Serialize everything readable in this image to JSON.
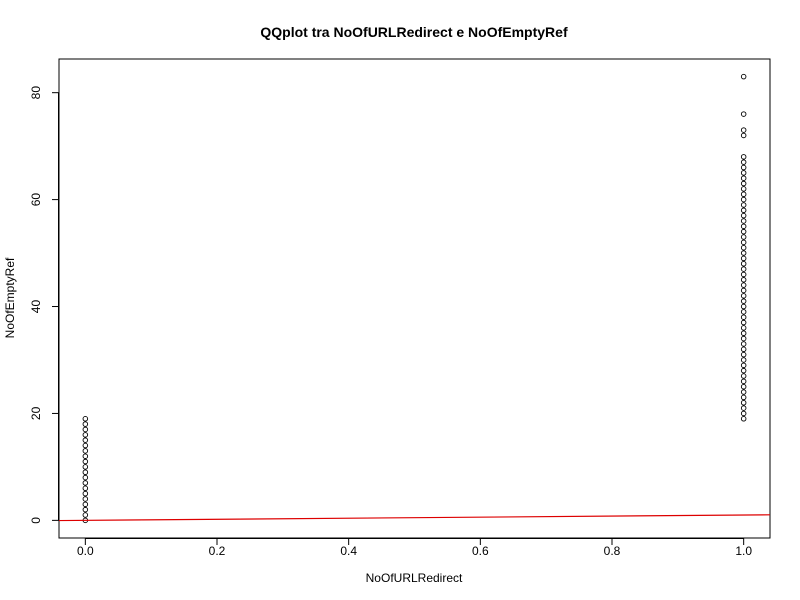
{
  "chart_data": {
    "type": "scatter",
    "title": "QQplot tra NoOfURLRedirect e NoOfEmptyRef",
    "xlabel": "NoOfURLRedirect",
    "ylabel": "NoOfEmptyRef",
    "xlim": [
      -0.04,
      1.04
    ],
    "ylim": [
      -3.3,
      86.3
    ],
    "x_ticks": [
      0.0,
      0.2,
      0.4,
      0.6,
      0.8,
      1.0
    ],
    "x_tick_labels": [
      "0.0",
      "0.2",
      "0.4",
      "0.6",
      "0.8",
      "1.0"
    ],
    "y_ticks": [
      0,
      20,
      40,
      60,
      80
    ],
    "y_tick_labels": [
      "0",
      "20",
      "40",
      "60",
      "80"
    ],
    "grid": false,
    "series": [
      {
        "values_x": 0,
        "values_y_range": [
          0,
          19
        ]
      },
      {
        "values_x": 1,
        "values_y_range": [
          19,
          64
        ],
        "extra_y": [
          65,
          66,
          67,
          68,
          72,
          73,
          76,
          83
        ]
      }
    ],
    "reference_line": {
      "color": "#dd0000",
      "x": [
        -0.04,
        1.04
      ],
      "y": [
        -0.04,
        1.04
      ]
    }
  }
}
